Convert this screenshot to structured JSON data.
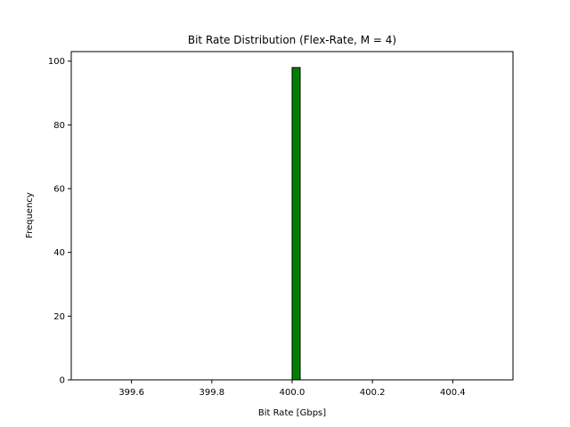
{
  "chart_data": {
    "type": "bar",
    "title": "Bit Rate Distribution (Flex-Rate, M = 4)",
    "xlabel": "Bit Rate [Gbps]",
    "ylabel": "Frequency",
    "xlim": [
      399.45,
      400.55
    ],
    "ylim": [
      0,
      103
    ],
    "xticks": [
      399.6,
      399.8,
      400.0,
      400.2,
      400.4
    ],
    "xtick_labels": [
      "399.6",
      "399.8",
      "400.0",
      "400.2",
      "400.4"
    ],
    "yticks": [
      0,
      20,
      40,
      60,
      80,
      100
    ],
    "ytick_labels": [
      "0",
      "20",
      "40",
      "60",
      "80",
      "100"
    ],
    "histogram_range": [
      399.5,
      400.5
    ],
    "bin_count": 50,
    "bars": [
      {
        "x_start": 400.0,
        "x_end": 400.02,
        "value": 98
      }
    ],
    "bar_color": "#008000",
    "edge_color": "#000000",
    "grid": false,
    "legend": false
  }
}
